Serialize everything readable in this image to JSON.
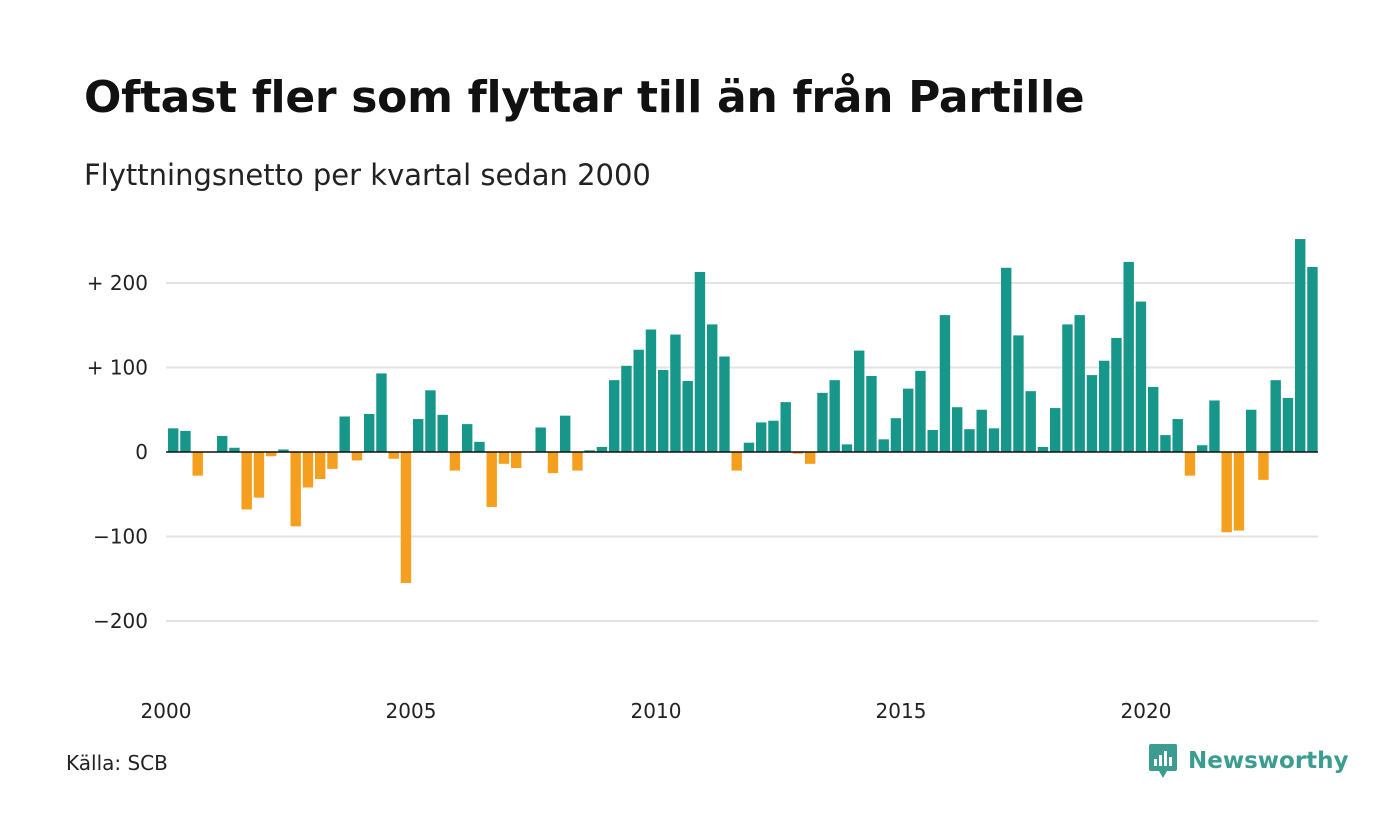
{
  "title": "Oftast fler som flyttar till än från Partille",
  "subtitle": "Flyttningsnetto per kvartal sedan 2000",
  "source": "Källa: SCB",
  "brand": {
    "name": "Newsworthy",
    "icon": "newsworthy-chart-bubble-icon"
  },
  "colors": {
    "positive": "#17968a",
    "negative": "#f59f1f",
    "grid": "#e3e3e3",
    "baseline": "#111111",
    "brand": "#3a9d8f"
  },
  "chart_data": {
    "type": "bar",
    "title": "Oftast fler som flyttar till än från Partille",
    "subtitle": "Flyttningsnetto per kvartal sedan 2000",
    "xlabel": "",
    "ylabel": "",
    "ylim": [
      -270,
      265
    ],
    "grid": true,
    "y_ticks": [
      {
        "value": 200,
        "label": "+ 200"
      },
      {
        "value": 100,
        "label": "+ 100"
      },
      {
        "value": 0,
        "label": "0"
      },
      {
        "value": -100,
        "label": "−100"
      },
      {
        "value": -200,
        "label": "−200"
      }
    ],
    "x_ticks": [
      {
        "value": 2000,
        "label": "2000"
      },
      {
        "value": 2005,
        "label": "2005"
      },
      {
        "value": 2010,
        "label": "2010"
      },
      {
        "value": 2015,
        "label": "2015"
      },
      {
        "value": 2020,
        "label": "2020"
      }
    ],
    "series": [
      {
        "start_quarter": "2000 Q1",
        "values": [
          28,
          25,
          -28,
          0,
          19,
          5,
          -68,
          -54,
          -5,
          3,
          -88,
          -42,
          -32,
          -20,
          42,
          -10,
          45,
          93,
          -8,
          -155,
          39,
          73,
          44,
          -22,
          33,
          12,
          -65,
          -14,
          -19,
          0,
          29,
          -25,
          43,
          -22,
          2,
          6,
          85,
          102,
          121,
          145,
          97,
          139,
          84,
          213,
          151,
          113,
          -22,
          11,
          35,
          37,
          59,
          -2,
          -14,
          70,
          85,
          9,
          120,
          90,
          15,
          40,
          75,
          96,
          26,
          162,
          53,
          27,
          50,
          28,
          218,
          138,
          72,
          6,
          52,
          151,
          162,
          91,
          108,
          135,
          225,
          178,
          77,
          20,
          39,
          -28,
          8,
          61,
          -95,
          -93,
          50,
          -33,
          85,
          64,
          252,
          219
        ]
      }
    ]
  }
}
